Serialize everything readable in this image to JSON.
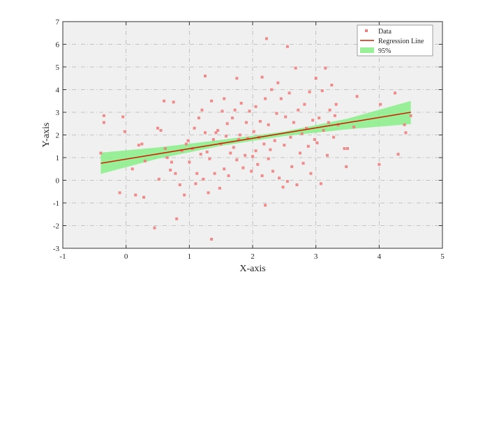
{
  "chart_data": {
    "type": "scatter",
    "title": "",
    "xlabel": "X-axis",
    "ylabel": "Y-axis",
    "xlim": [
      -1,
      5
    ],
    "ylim": [
      -3,
      7
    ],
    "xticks": [
      "-1",
      "0",
      "1",
      "2",
      "3",
      "4",
      "5"
    ],
    "yticks": [
      "-3",
      "-2",
      "-1",
      "0",
      "1",
      "2",
      "3",
      "4",
      "5",
      "6",
      "7"
    ],
    "grid": true,
    "background_color": "#f0f0f0",
    "legend": {
      "position": "top-right",
      "entries": [
        {
          "label": "Data",
          "kind": "marker",
          "color": "#f08080"
        },
        {
          "label": "Regression Line",
          "kind": "line",
          "color": "#cc2200"
        },
        {
          "label": "95%",
          "kind": "band",
          "color": "#99f099"
        }
      ]
    },
    "regression": {
      "name": "Regression Line",
      "color": "#cc2200",
      "x": [
        -0.4,
        4.5
      ],
      "y": [
        0.75,
        3.0
      ]
    },
    "confidence_band": {
      "name": "95%",
      "color": "#88ee88",
      "x": [
        -0.4,
        0.5,
        1.5,
        2.5,
        3.5,
        4.5
      ],
      "lower": [
        0.28,
        0.95,
        1.52,
        1.95,
        2.25,
        2.48
      ],
      "upper": [
        1.22,
        1.45,
        1.78,
        2.15,
        2.72,
        3.5
      ]
    },
    "series": [
      {
        "name": "Data",
        "color": "#f08080",
        "points": [
          [
            -0.4,
            1.2
          ],
          [
            -0.35,
            2.85
          ],
          [
            -0.35,
            2.55
          ],
          [
            -0.1,
            -0.55
          ],
          [
            -0.05,
            2.8
          ],
          [
            -0.02,
            2.15
          ],
          [
            0.1,
            0.5
          ],
          [
            0.15,
            -0.65
          ],
          [
            0.2,
            1.55
          ],
          [
            0.25,
            1.6
          ],
          [
            0.28,
            -0.75
          ],
          [
            0.3,
            0.85
          ],
          [
            0.45,
            -2.1
          ],
          [
            0.5,
            2.3
          ],
          [
            0.52,
            0.05
          ],
          [
            0.55,
            2.2
          ],
          [
            0.6,
            3.5
          ],
          [
            0.62,
            1.4
          ],
          [
            0.65,
            1.0
          ],
          [
            0.7,
            0.45
          ],
          [
            0.72,
            0.8
          ],
          [
            0.75,
            3.45
          ],
          [
            0.78,
            0.3
          ],
          [
            0.8,
            -1.7
          ],
          [
            0.85,
            -0.2
          ],
          [
            0.88,
            1.3
          ],
          [
            0.92,
            -0.65
          ],
          [
            0.95,
            1.6
          ],
          [
            0.98,
            1.75
          ],
          [
            1.0,
            0.8
          ],
          [
            1.05,
            1.4
          ],
          [
            1.08,
            2.3
          ],
          [
            1.1,
            -0.15
          ],
          [
            1.12,
            0.3
          ],
          [
            1.15,
            2.75
          ],
          [
            1.18,
            1.15
          ],
          [
            1.2,
            3.1
          ],
          [
            1.22,
            0.05
          ],
          [
            1.25,
            2.1
          ],
          [
            1.25,
            4.6
          ],
          [
            1.28,
            1.25
          ],
          [
            1.3,
            -0.55
          ],
          [
            1.32,
            0.95
          ],
          [
            1.35,
            3.5
          ],
          [
            1.35,
            -2.6
          ],
          [
            1.38,
            1.8
          ],
          [
            1.4,
            0.3
          ],
          [
            1.42,
            2.1
          ],
          [
            1.45,
            2.2
          ],
          [
            1.48,
            -0.35
          ],
          [
            1.5,
            1.6
          ],
          [
            1.52,
            3.05
          ],
          [
            1.55,
            0.5
          ],
          [
            1.55,
            3.6
          ],
          [
            1.58,
            1.95
          ],
          [
            1.6,
            2.5
          ],
          [
            1.62,
            0.2
          ],
          [
            1.65,
            1.2
          ],
          [
            1.68,
            2.75
          ],
          [
            1.7,
            1.45
          ],
          [
            1.72,
            3.1
          ],
          [
            1.75,
            0.9
          ],
          [
            1.75,
            4.5
          ],
          [
            1.78,
            1.8
          ],
          [
            1.8,
            2.0
          ],
          [
            1.82,
            3.4
          ],
          [
            1.85,
            0.55
          ],
          [
            1.88,
            1.1
          ],
          [
            1.9,
            2.55
          ],
          [
            1.92,
            1.85
          ],
          [
            1.95,
            3.05
          ],
          [
            1.98,
            0.4
          ],
          [
            2.0,
            1.05
          ],
          [
            2.02,
            2.15
          ],
          [
            2.05,
            1.3
          ],
          [
            2.05,
            3.25
          ],
          [
            2.08,
            0.7
          ],
          [
            2.1,
            1.9
          ],
          [
            2.12,
            2.6
          ],
          [
            2.15,
            0.2
          ],
          [
            2.15,
            4.55
          ],
          [
            2.18,
            1.6
          ],
          [
            2.2,
            3.6
          ],
          [
            2.2,
            -1.1
          ],
          [
            2.22,
            6.25
          ],
          [
            2.25,
            0.95
          ],
          [
            2.25,
            2.45
          ],
          [
            2.28,
            1.35
          ],
          [
            2.3,
            4.0
          ],
          [
            2.32,
            0.4
          ],
          [
            2.35,
            1.75
          ],
          [
            2.38,
            2.95
          ],
          [
            2.4,
            4.3
          ],
          [
            2.42,
            0.1
          ],
          [
            2.45,
            3.6
          ],
          [
            2.48,
            -0.3
          ],
          [
            2.5,
            1.55
          ],
          [
            2.52,
            2.8
          ],
          [
            2.55,
            5.9
          ],
          [
            2.55,
            -0.05
          ],
          [
            2.58,
            3.85
          ],
          [
            2.6,
            1.9
          ],
          [
            2.62,
            0.6
          ],
          [
            2.65,
            2.55
          ],
          [
            2.68,
            4.95
          ],
          [
            2.7,
            -0.2
          ],
          [
            2.72,
            3.1
          ],
          [
            2.75,
            1.2
          ],
          [
            2.78,
            2.05
          ],
          [
            2.8,
            0.75
          ],
          [
            2.82,
            3.35
          ],
          [
            2.85,
            2.3
          ],
          [
            2.88,
            1.5
          ],
          [
            2.9,
            3.9
          ],
          [
            2.92,
            0.3
          ],
          [
            2.95,
            2.65
          ],
          [
            2.98,
            1.8
          ],
          [
            3.0,
            4.5
          ],
          [
            3.02,
            1.65
          ],
          [
            3.05,
            2.75
          ],
          [
            3.08,
            -0.15
          ],
          [
            3.1,
            3.95
          ],
          [
            3.12,
            2.2
          ],
          [
            3.15,
            4.95
          ],
          [
            3.18,
            1.1
          ],
          [
            3.2,
            2.55
          ],
          [
            3.22,
            3.1
          ],
          [
            3.25,
            4.2
          ],
          [
            3.28,
            1.9
          ],
          [
            3.3,
            2.85
          ],
          [
            3.32,
            3.35
          ],
          [
            3.35,
            2.45
          ],
          [
            3.45,
            1.4
          ],
          [
            3.48,
            0.6
          ],
          [
            3.5,
            1.4
          ],
          [
            3.6,
            2.35
          ],
          [
            3.65,
            3.7
          ],
          [
            4.0,
            0.7
          ],
          [
            4.02,
            3.35
          ],
          [
            4.25,
            3.85
          ],
          [
            4.3,
            1.15
          ],
          [
            4.4,
            2.45
          ],
          [
            4.42,
            2.1
          ],
          [
            4.5,
            2.85
          ]
        ]
      }
    ]
  }
}
